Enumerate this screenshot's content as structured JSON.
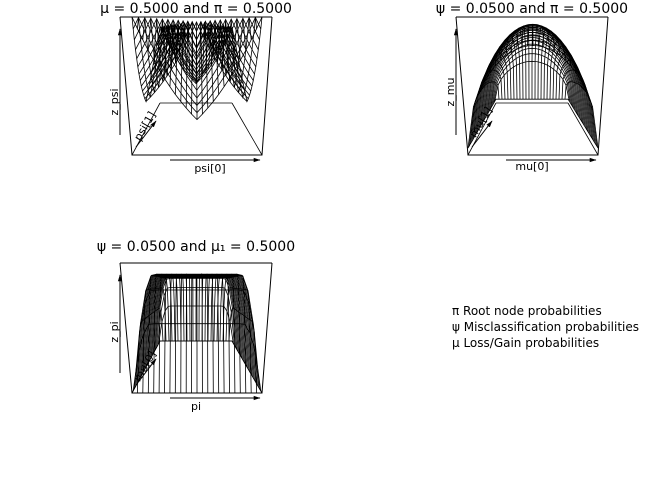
{
  "chart_data": [
    {
      "type": "surface",
      "title": "μ = 0.5000 and π = 0.5000",
      "xlabel": "psi[0]",
      "ylabel": "psi[1]",
      "zlabel": "z_psi",
      "surface": "saddle"
    },
    {
      "type": "surface",
      "title": "ψ = 0.0500 and π = 0.5000",
      "xlabel": "mu[0]",
      "ylabel": "mu[1]",
      "zlabel": "z_mu",
      "surface": "dome"
    },
    {
      "type": "surface",
      "title": "ψ = 0.0500 and μ₁ = 0.5000",
      "xlabel": "pi",
      "ylabel": "mu[0]",
      "zlabel": "z_pi",
      "surface": "plateau"
    }
  ],
  "legend": [
    "π Root node probabilities",
    "ψ Misclassification probabilities",
    "μ Loss/Gain probabilities"
  ]
}
